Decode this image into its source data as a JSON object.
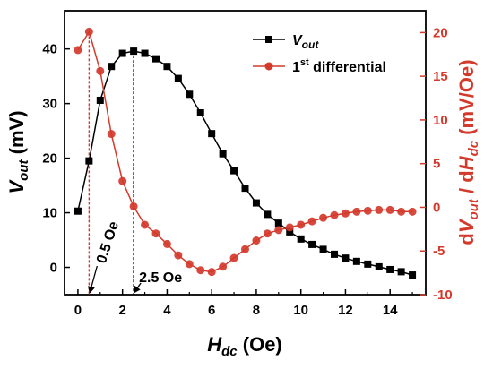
{
  "chart_data": {
    "type": "line",
    "x_axis": {
      "label_main": "H",
      "label_sub": "dc",
      "label_unit": " (Oe)",
      "range": [
        -0.6,
        15.6
      ],
      "ticks": [
        0,
        2,
        4,
        6,
        8,
        10,
        12,
        14
      ]
    },
    "y_left": {
      "label_main": "V",
      "label_sub": "out",
      "label_unit": " (mV)",
      "range": [
        -5,
        47
      ],
      "ticks": [
        0,
        10,
        20,
        30,
        40
      ],
      "color": "#000000"
    },
    "y_right": {
      "label_d1": "d",
      "label_v": "V",
      "label_vsub": "out",
      "label_mid": " / d",
      "label_h": "H",
      "label_hsub": "dc",
      "label_unit": " (mV/Oe)",
      "range": [
        -10,
        22.5
      ],
      "ticks": [
        -10,
        -5,
        0,
        5,
        10,
        15,
        20
      ],
      "color": "#d43a2c"
    },
    "series": [
      {
        "name_main": "V",
        "name_sub": "out",
        "axis": "left",
        "marker": "square",
        "color": "#000000",
        "x": [
          0,
          0.5,
          1,
          1.5,
          2,
          2.5,
          3,
          3.5,
          4,
          4.5,
          5,
          5.5,
          6,
          6.5,
          7,
          7.5,
          8,
          8.5,
          9,
          9.5,
          10,
          10.5,
          11,
          11.5,
          12,
          12.5,
          13,
          13.5,
          14,
          14.5,
          15
        ],
        "y": [
          10.3,
          19.5,
          30.6,
          36.8,
          39.2,
          39.6,
          39.2,
          38.2,
          36.8,
          34.6,
          31.7,
          28.3,
          24.5,
          20.8,
          17.7,
          14.5,
          11.8,
          9.7,
          8.1,
          6.5,
          5.2,
          4.2,
          3.3,
          2.4,
          1.7,
          1.1,
          0.6,
          0.1,
          -0.4,
          -0.8,
          -1.4
        ]
      },
      {
        "name_pre": "1",
        "name_sup": "st",
        "name_post": " differential",
        "axis": "right",
        "marker": "circle",
        "color": "#d43a2c",
        "x": [
          0,
          0.5,
          1,
          1.5,
          2,
          2.5,
          3,
          3.5,
          4,
          4.5,
          5,
          5.5,
          6,
          6.5,
          7,
          7.5,
          8,
          8.5,
          9,
          9.5,
          10,
          10.5,
          11,
          11.5,
          12,
          12.5,
          13,
          13.5,
          14,
          14.5,
          15
        ],
        "y": [
          18,
          20.1,
          15.6,
          8.4,
          3.0,
          0.1,
          -2.0,
          -3.0,
          -4.2,
          -5.5,
          -6.5,
          -7.2,
          -7.4,
          -6.8,
          -5.8,
          -4.8,
          -3.8,
          -3.0,
          -2.6,
          -2.3,
          -2.0,
          -1.6,
          -1.2,
          -0.9,
          -0.7,
          -0.5,
          -0.4,
          -0.3,
          -0.3,
          -0.5,
          -0.5
        ]
      }
    ],
    "annotations": [
      {
        "text": "0.5 Oe",
        "x": 0.5
      },
      {
        "text": "2.5 Oe",
        "x": 2.5
      }
    ],
    "grid": false,
    "legend_position": "top-right"
  }
}
